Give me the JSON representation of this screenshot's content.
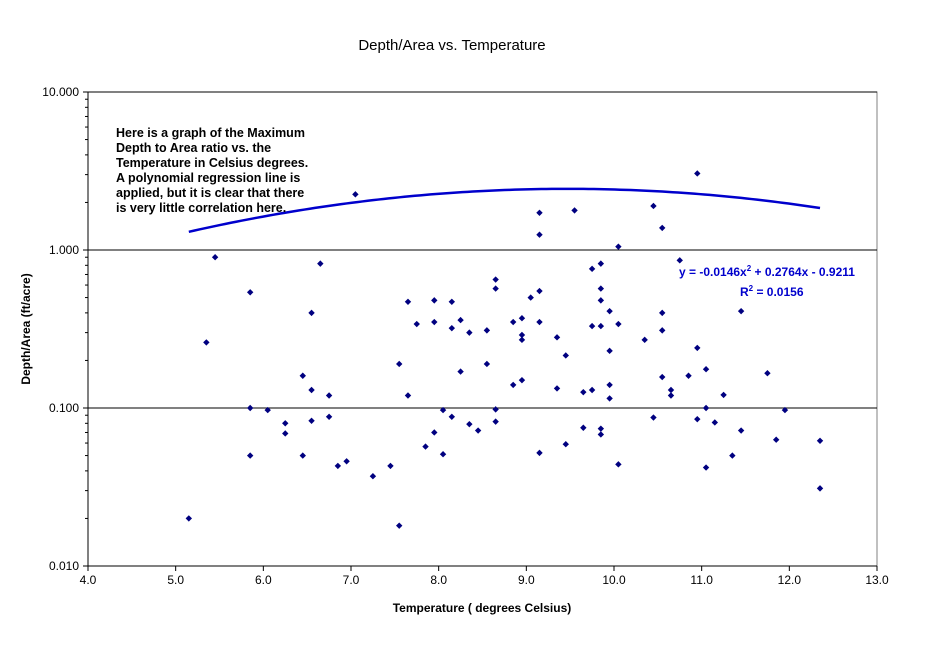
{
  "chart_data": {
    "type": "scatter",
    "title": "Depth/Area vs. Temperature",
    "xlabel": "Temperature ( degrees Celsius)",
    "ylabel": "Depth/Area (ft/acre)",
    "xlim": [
      4.0,
      13.0
    ],
    "ylim": [
      0.01,
      10.0
    ],
    "yscale": "log",
    "x_ticks": [
      "4.0",
      "5.0",
      "6.0",
      "7.0",
      "8.0",
      "9.0",
      "10.0",
      "11.0",
      "12.0",
      "13.0"
    ],
    "y_ticks": [
      "0.010",
      "0.100",
      "1.000",
      "10.000"
    ],
    "grid": "horizontal major lines at 0.100, 1.000 and 10.000",
    "marker_color": "#000080",
    "trendline_color": "#0000cc",
    "annotation_lines": [
      "Here is a graph of the  Maximum",
      "Depth to Area ratio vs. the",
      "Temperature in Celsius degrees.",
      "A polynomial regression line is",
      "applied, but it is clear that there",
      "is very little correlation here."
    ],
    "equation": "y = -0.0146x2 + 0.2764x - 0.9211",
    "equation_parts": {
      "a": "y = -0.0146x",
      "exp": "2",
      "b": " + 0.2764x - 0.9211"
    },
    "r_squared": "R2 = 0.0156",
    "r_squared_parts": {
      "a": "R",
      "exp": "2",
      "b": " = 0.0156"
    },
    "trendline": {
      "type": "polynomial",
      "order": 2,
      "coefficients": [
        -0.0146,
        0.2764,
        -0.9211
      ],
      "x_range": [
        5.15,
        12.35
      ]
    },
    "points": [
      [
        5.15,
        0.02
      ],
      [
        5.35,
        0.26
      ],
      [
        5.45,
        0.9
      ],
      [
        5.85,
        0.54
      ],
      [
        5.85,
        0.1
      ],
      [
        5.85,
        0.05
      ],
      [
        6.05,
        0.097
      ],
      [
        6.25,
        0.08
      ],
      [
        6.25,
        0.069
      ],
      [
        6.45,
        0.16
      ],
      [
        6.45,
        0.05
      ],
      [
        6.55,
        0.4
      ],
      [
        6.55,
        0.13
      ],
      [
        6.55,
        0.083
      ],
      [
        6.65,
        0.82
      ],
      [
        6.75,
        0.12
      ],
      [
        6.75,
        0.088
      ],
      [
        6.85,
        0.043
      ],
      [
        6.95,
        0.046
      ],
      [
        7.05,
        2.25
      ],
      [
        7.25,
        0.037
      ],
      [
        7.45,
        0.043
      ],
      [
        7.55,
        0.19
      ],
      [
        7.55,
        0.018
      ],
      [
        7.65,
        0.47
      ],
      [
        7.65,
        0.12
      ],
      [
        7.75,
        0.34
      ],
      [
        7.85,
        0.057
      ],
      [
        7.95,
        0.48
      ],
      [
        7.95,
        0.35
      ],
      [
        7.95,
        0.07
      ],
      [
        8.05,
        0.097
      ],
      [
        8.05,
        0.051
      ],
      [
        8.15,
        0.47
      ],
      [
        8.15,
        0.32
      ],
      [
        8.15,
        0.088
      ],
      [
        8.25,
        0.36
      ],
      [
        8.25,
        0.17
      ],
      [
        8.35,
        0.3
      ],
      [
        8.35,
        0.079
      ],
      [
        8.45,
        0.072
      ],
      [
        8.55,
        0.31
      ],
      [
        8.55,
        0.19
      ],
      [
        8.65,
        0.65
      ],
      [
        8.65,
        0.57
      ],
      [
        8.65,
        0.098
      ],
      [
        8.65,
        0.082
      ],
      [
        8.85,
        0.35
      ],
      [
        8.85,
        0.14
      ],
      [
        8.95,
        0.37
      ],
      [
        8.95,
        0.29
      ],
      [
        8.95,
        0.27
      ],
      [
        8.95,
        0.15
      ],
      [
        9.05,
        0.5
      ],
      [
        9.15,
        1.72
      ],
      [
        9.15,
        1.25
      ],
      [
        9.15,
        0.55
      ],
      [
        9.15,
        0.35
      ],
      [
        9.15,
        0.052
      ],
      [
        9.35,
        0.28
      ],
      [
        9.35,
        0.133
      ],
      [
        9.45,
        0.215
      ],
      [
        9.45,
        0.059
      ],
      [
        9.55,
        1.78
      ],
      [
        9.65,
        0.126
      ],
      [
        9.65,
        0.075
      ],
      [
        9.75,
        0.76
      ],
      [
        9.75,
        0.33
      ],
      [
        9.75,
        0.13
      ],
      [
        9.85,
        0.82
      ],
      [
        9.85,
        0.57
      ],
      [
        9.85,
        0.48
      ],
      [
        9.85,
        0.33
      ],
      [
        9.85,
        0.074
      ],
      [
        9.85,
        0.068
      ],
      [
        9.95,
        0.41
      ],
      [
        9.95,
        0.23
      ],
      [
        9.95,
        0.14
      ],
      [
        9.95,
        0.115
      ],
      [
        10.05,
        1.05
      ],
      [
        10.05,
        0.34
      ],
      [
        10.05,
        0.044
      ],
      [
        10.35,
        0.27
      ],
      [
        10.45,
        1.9
      ],
      [
        10.45,
        0.087
      ],
      [
        10.55,
        1.38
      ],
      [
        10.55,
        0.4
      ],
      [
        10.55,
        0.31
      ],
      [
        10.55,
        0.157
      ],
      [
        10.65,
        0.13
      ],
      [
        10.65,
        0.12
      ],
      [
        10.75,
        0.86
      ],
      [
        10.85,
        0.16
      ],
      [
        10.95,
        3.05
      ],
      [
        10.95,
        0.24
      ],
      [
        10.95,
        0.085
      ],
      [
        11.05,
        0.176
      ],
      [
        11.05,
        0.1
      ],
      [
        11.05,
        0.042
      ],
      [
        11.15,
        0.081
      ],
      [
        11.25,
        0.121
      ],
      [
        11.35,
        0.05
      ],
      [
        11.45,
        0.41
      ],
      [
        11.45,
        0.072
      ],
      [
        11.75,
        0.166
      ],
      [
        11.85,
        0.063
      ],
      [
        11.95,
        0.097
      ],
      [
        12.35,
        0.062
      ],
      [
        12.35,
        0.031
      ]
    ]
  }
}
